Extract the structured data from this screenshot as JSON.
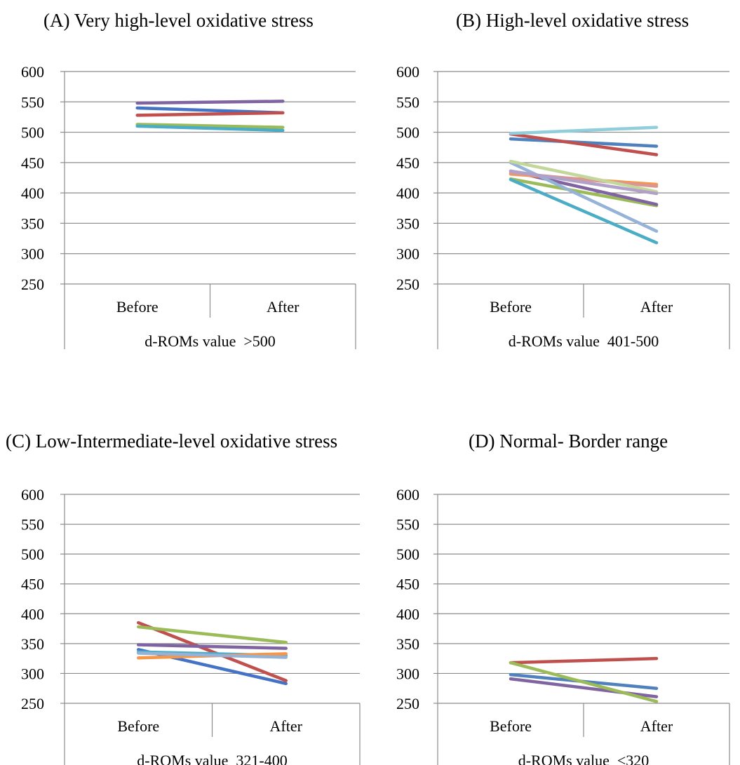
{
  "chart_data": [
    {
      "type": "line",
      "title": "(A) Very high-level oxidative stress",
      "categories": [
        "Before",
        "After"
      ],
      "group_label": "d-ROMs value  >500",
      "ylim": [
        250,
        600
      ],
      "yticks": [
        250,
        300,
        350,
        400,
        450,
        500,
        550,
        600
      ],
      "grid": true,
      "series": [
        {
          "values": [
            540,
            532
          ],
          "color": "#4472C4"
        },
        {
          "values": [
            528,
            532
          ],
          "color": "#C0504D"
        },
        {
          "values": [
            513,
            508
          ],
          "color": "#9BBB59"
        },
        {
          "values": [
            548,
            551
          ],
          "color": "#8064A2"
        },
        {
          "values": [
            510,
            503
          ],
          "color": "#4BACC6"
        }
      ]
    },
    {
      "type": "line",
      "title": "(B) High-level oxidative stress",
      "categories": [
        "Before",
        "After"
      ],
      "group_label": "d-ROMs value  401-500",
      "ylim": [
        250,
        600
      ],
      "yticks": [
        250,
        300,
        350,
        400,
        450,
        500,
        550,
        600
      ],
      "grid": true,
      "series": [
        {
          "values": [
            489,
            477
          ],
          "color": "#4F81BD"
        },
        {
          "values": [
            497,
            463
          ],
          "color": "#C0504D"
        },
        {
          "values": [
            423,
            379
          ],
          "color": "#9BBB59"
        },
        {
          "values": [
            436,
            381
          ],
          "color": "#8064A2"
        },
        {
          "values": [
            422,
            318
          ],
          "color": "#4BACC6"
        },
        {
          "values": [
            431,
            414
          ],
          "color": "#F79646"
        },
        {
          "values": [
            450,
            337
          ],
          "color": "#95B3D7"
        },
        {
          "values": [
            433,
            411
          ],
          "color": "#DA9694"
        },
        {
          "values": [
            452,
            402
          ],
          "color": "#C4D79B"
        },
        {
          "values": [
            436,
            399
          ],
          "color": "#B1A0C7"
        },
        {
          "values": [
            498,
            508
          ],
          "color": "#92CDDC"
        }
      ]
    },
    {
      "type": "line",
      "title": "(C) Low-Intermediate-level oxidative stress",
      "categories": [
        "Before",
        "After"
      ],
      "group_label": "d-ROMs value  321-400",
      "ylim": [
        250,
        600
      ],
      "yticks": [
        250,
        300,
        350,
        400,
        450,
        500,
        550,
        600
      ],
      "grid": true,
      "series": [
        {
          "values": [
            340,
            283
          ],
          "color": "#4472C4"
        },
        {
          "values": [
            385,
            288
          ],
          "color": "#C0504D"
        },
        {
          "values": [
            378,
            352
          ],
          "color": "#9BBB59"
        },
        {
          "values": [
            348,
            342
          ],
          "color": "#8064A2"
        },
        {
          "values": [
            336,
            330
          ],
          "color": "#4BACC6"
        },
        {
          "values": [
            326,
            333
          ],
          "color": "#F79646"
        },
        {
          "values": [
            334,
            327
          ],
          "color": "#95B3D7"
        }
      ]
    },
    {
      "type": "line",
      "title": "(D) Normal- Border range",
      "categories": [
        "Before",
        "After"
      ],
      "group_label": "d-ROMs value  <320",
      "ylim": [
        250,
        600
      ],
      "yticks": [
        250,
        300,
        350,
        400,
        450,
        500,
        550,
        600
      ],
      "grid": true,
      "series": [
        {
          "values": [
            298,
            275
          ],
          "color": "#4F81BD"
        },
        {
          "values": [
            318,
            325
          ],
          "color": "#C0504D"
        },
        {
          "values": [
            291,
            261
          ],
          "color": "#8064A2"
        },
        {
          "values": [
            318,
            253
          ],
          "color": "#9BBB59"
        }
      ]
    }
  ]
}
